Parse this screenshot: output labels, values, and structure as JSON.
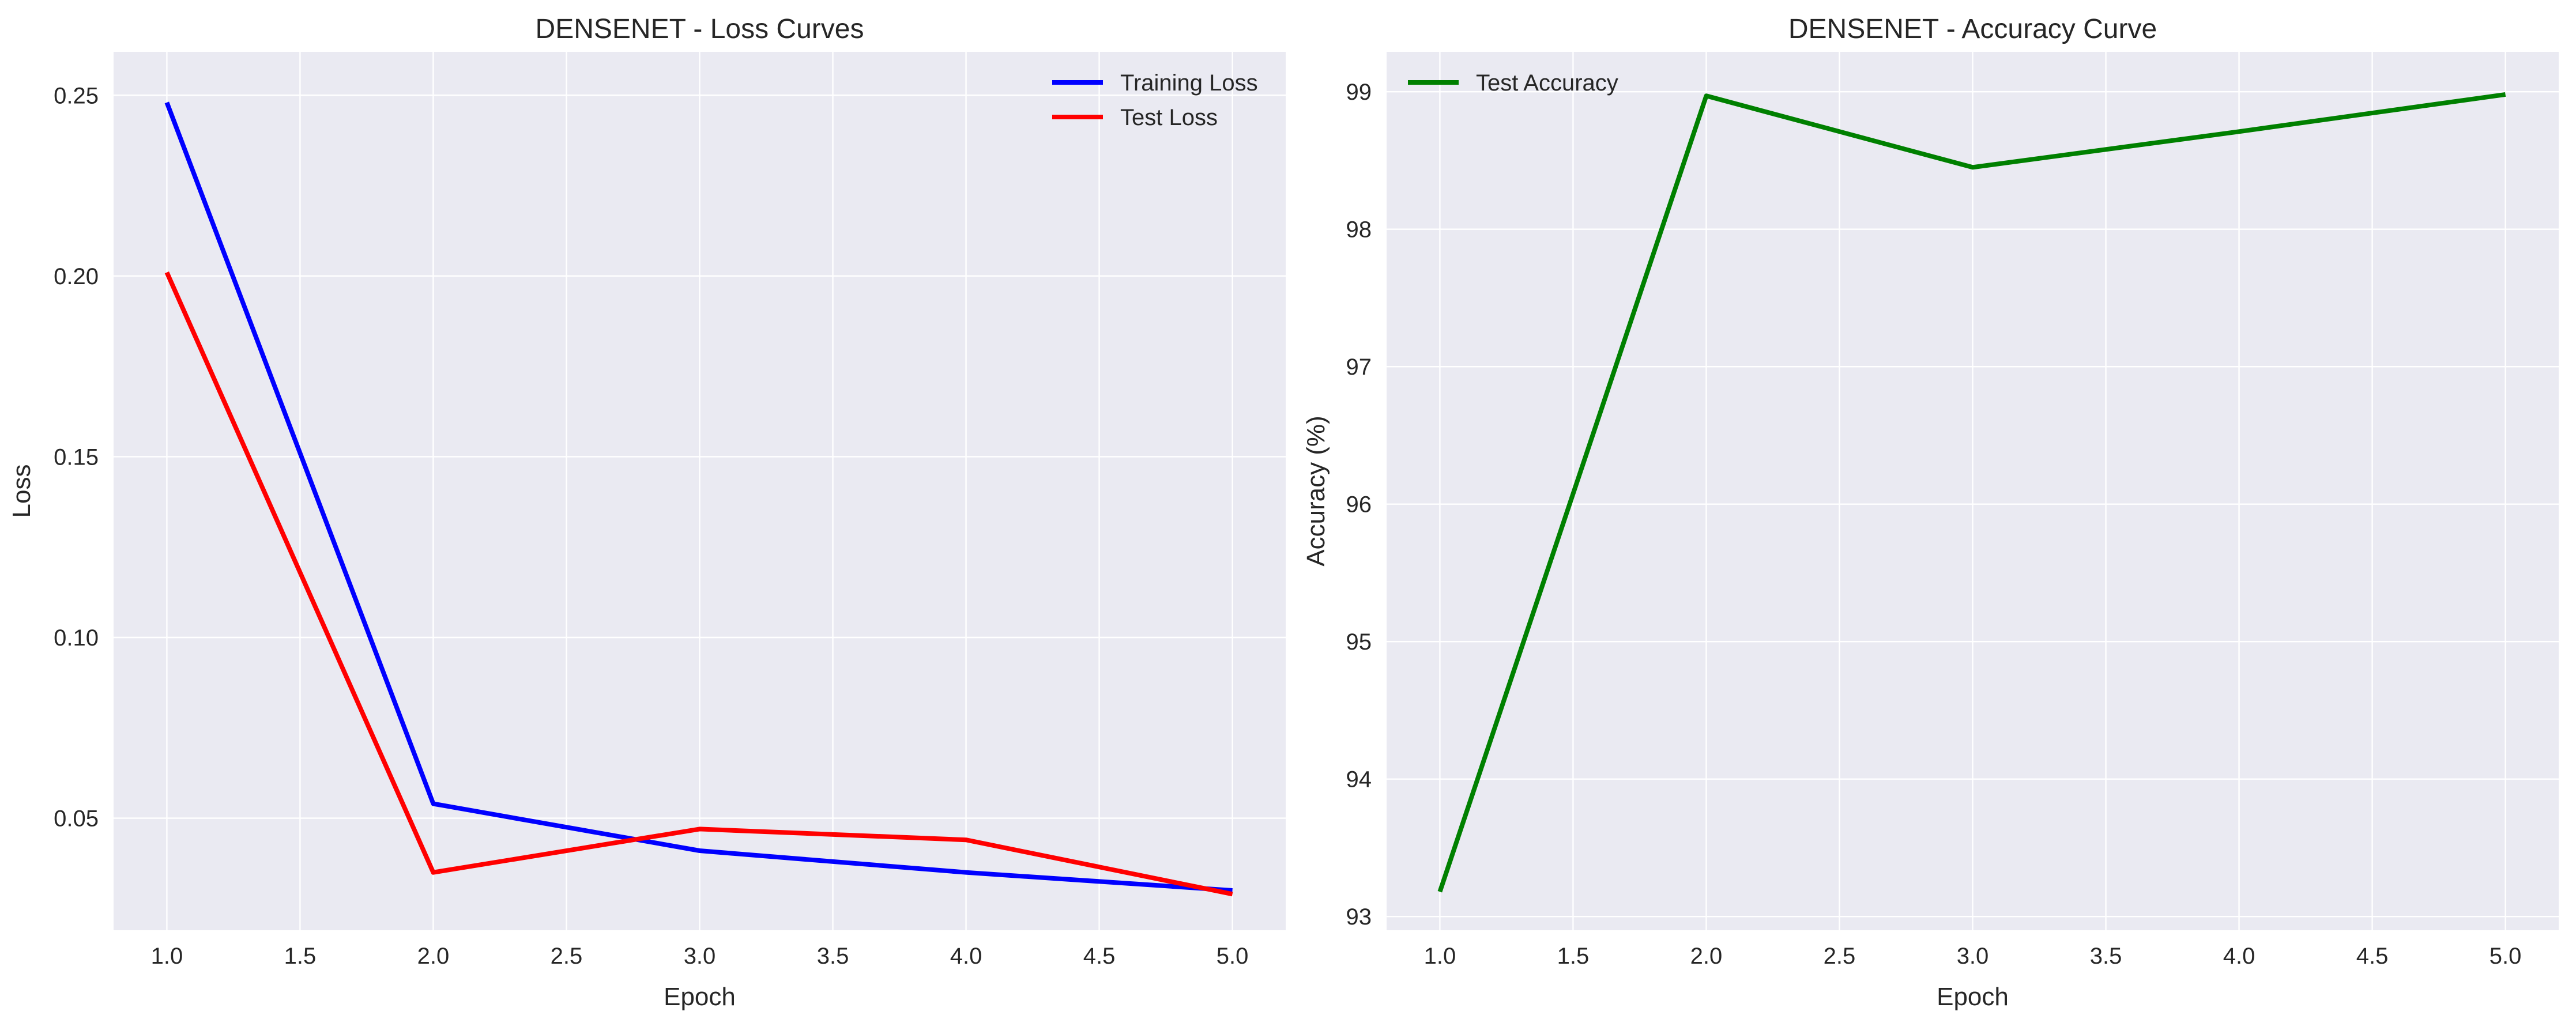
{
  "chart_data": [
    {
      "type": "line",
      "title": "DENSENET - Loss Curves",
      "xlabel": "Epoch",
      "ylabel": "Loss",
      "xlim": [
        0.8,
        5.2
      ],
      "ylim": [
        0.019,
        0.262
      ],
      "xticks": [
        "1.0",
        "1.5",
        "2.0",
        "2.5",
        "3.0",
        "3.5",
        "4.0",
        "4.5",
        "5.0"
      ],
      "yticks": [
        "0.05",
        "0.10",
        "0.15",
        "0.20",
        "0.25"
      ],
      "grid": true,
      "legend_position": "top-right",
      "x": [
        1,
        2,
        3,
        4,
        5
      ],
      "series": [
        {
          "name": "Training Loss",
          "color": "#0000ff",
          "values": [
            0.248,
            0.054,
            0.041,
            0.035,
            0.03
          ]
        },
        {
          "name": "Test Loss",
          "color": "#ff0000",
          "values": [
            0.201,
            0.035,
            0.047,
            0.044,
            0.029
          ]
        }
      ]
    },
    {
      "type": "line",
      "title": "DENSENET - Accuracy Curve",
      "xlabel": "Epoch",
      "ylabel": "Accuracy (%)",
      "xlim": [
        0.8,
        5.2
      ],
      "ylim": [
        92.9,
        99.29
      ],
      "xticks": [
        "1.0",
        "1.5",
        "2.0",
        "2.5",
        "3.0",
        "3.5",
        "4.0",
        "4.5",
        "5.0"
      ],
      "yticks": [
        "93",
        "94",
        "95",
        "96",
        "97",
        "98",
        "99"
      ],
      "grid": true,
      "legend_position": "top-left",
      "x": [
        1,
        2,
        3,
        4,
        5
      ],
      "series": [
        {
          "name": "Test Accuracy",
          "color": "#008000",
          "values": [
            93.18,
            98.97,
            98.45,
            98.71,
            98.98
          ]
        }
      ]
    }
  ]
}
